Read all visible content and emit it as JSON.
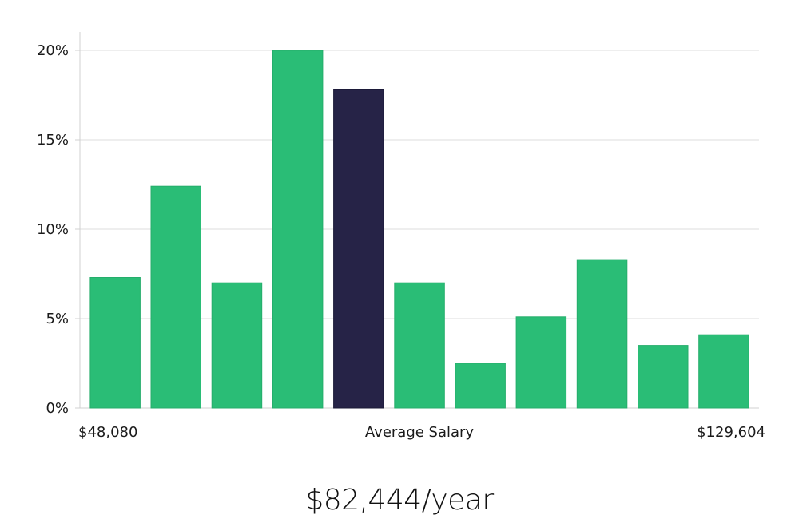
{
  "chart_data": {
    "type": "bar",
    "values": [
      7.3,
      12.4,
      7.0,
      20.0,
      17.8,
      7.0,
      2.5,
      5.1,
      8.3,
      3.5,
      4.1
    ],
    "highlight_index": 4,
    "ylim": [
      0,
      21
    ],
    "yticks": [
      0,
      5,
      10,
      15,
      20
    ],
    "ytick_suffix": "%",
    "grid": true,
    "xlabel_left": "$48,080",
    "xlabel_center": "Average Salary",
    "xlabel_right": "$129,604",
    "colors": {
      "bar": "#2abd76",
      "highlight": "#262347",
      "grid": "#dcdcdc",
      "axis": "#d0d0d0"
    }
  },
  "summary": {
    "average_salary": "$82,444/year"
  }
}
